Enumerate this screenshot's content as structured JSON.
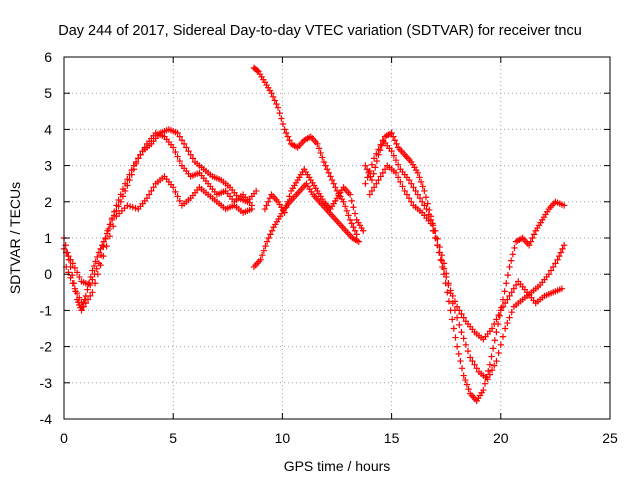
{
  "chart_data": {
    "type": "scatter",
    "title": "Day 244 of 2017, Sidereal Day-to-day VTEC variation (SDTVAR) for receiver tncu",
    "xlabel": "GPS time / hours",
    "ylabel": "SDTVAR / TECUs",
    "xlim": [
      0,
      25
    ],
    "ylim": [
      -4,
      6
    ],
    "xticks": [
      0,
      5,
      10,
      15,
      20,
      25
    ],
    "yticks": [
      -4,
      -3,
      -2,
      -1,
      0,
      1,
      2,
      3,
      4,
      5,
      6
    ],
    "grid": true,
    "marker": "+",
    "color": "#ff0000",
    "series": [
      {
        "x": [
          0.0,
          0.3,
          0.6,
          0.8,
          1.0,
          1.3,
          1.6,
          1.9,
          2.2,
          2.6,
          3.0,
          3.4,
          3.8,
          4.2,
          4.6,
          5.0,
          5.4,
          5.8,
          6.2,
          6.6,
          7.0,
          7.4,
          7.8,
          8.2,
          8.6
        ],
        "y": [
          1.0,
          0.2,
          -0.7,
          -1.0,
          -0.6,
          0.1,
          0.6,
          1.0,
          1.5,
          2.0,
          2.6,
          3.2,
          3.6,
          3.9,
          3.8,
          3.5,
          3.0,
          2.7,
          2.8,
          2.5,
          2.2,
          2.3,
          2.0,
          2.2,
          1.9
        ]
      },
      {
        "x": [
          0.0,
          0.4,
          0.8,
          1.2,
          1.6,
          2.0,
          2.4,
          2.8,
          3.2,
          3.6,
          4.0,
          4.4,
          4.8,
          5.2,
          5.6,
          6.0,
          6.4,
          6.8,
          7.2,
          7.6,
          8.0,
          8.4,
          8.8
        ],
        "y": [
          0.7,
          0.3,
          -0.2,
          -0.3,
          0.3,
          1.2,
          1.9,
          2.5,
          3.0,
          3.4,
          3.6,
          3.9,
          4.0,
          3.9,
          3.5,
          3.1,
          2.9,
          2.7,
          2.6,
          2.4,
          2.1,
          2.0,
          2.3
        ]
      },
      {
        "x": [
          0.1,
          0.5,
          0.9,
          1.3,
          1.8,
          2.4,
          2.9,
          3.4,
          3.8,
          4.2,
          4.6,
          5.0,
          5.4,
          5.8,
          6.2,
          6.6,
          7.0,
          7.4,
          7.8,
          8.2,
          8.6
        ],
        "y": [
          0.2,
          -0.4,
          -0.9,
          -0.5,
          0.5,
          1.6,
          1.9,
          1.8,
          2.1,
          2.5,
          2.7,
          2.4,
          1.9,
          2.1,
          2.4,
          2.2,
          2.0,
          1.8,
          1.9,
          1.7,
          1.8
        ]
      },
      {
        "x": [
          8.7,
          8.9,
          9.2,
          9.5,
          9.8,
          10.1,
          10.4,
          10.7,
          11.0,
          11.3,
          11.6,
          11.9,
          12.2,
          12.5,
          12.8,
          13.1,
          13.4
        ],
        "y": [
          5.7,
          5.6,
          5.3,
          5.0,
          4.6,
          4.0,
          3.6,
          3.5,
          3.7,
          3.8,
          3.6,
          3.1,
          2.7,
          2.3,
          2.0,
          1.5,
          1.1
        ]
      },
      {
        "x": [
          8.7,
          9.0,
          9.3,
          9.6,
          9.9,
          10.2,
          10.5,
          10.8,
          11.1,
          11.4,
          11.7,
          12.0,
          12.3,
          12.6,
          12.9,
          13.2,
          13.5
        ],
        "y": [
          0.2,
          0.4,
          0.9,
          1.3,
          1.6,
          1.9,
          2.1,
          2.3,
          2.5,
          2.2,
          2.0,
          1.8,
          1.6,
          1.4,
          1.2,
          1.0,
          0.9
        ]
      },
      {
        "x": [
          9.2,
          9.5,
          9.8,
          10.1,
          10.4,
          10.7,
          11.0,
          11.3,
          11.6,
          11.9,
          12.2,
          12.5,
          12.8,
          13.1,
          13.4,
          13.7
        ],
        "y": [
          1.8,
          2.2,
          2.0,
          1.7,
          2.3,
          2.6,
          2.9,
          2.6,
          2.3,
          2.0,
          1.8,
          2.1,
          2.4,
          2.2,
          1.5,
          1.2
        ]
      },
      {
        "x": [
          13.8,
          14.1,
          14.4,
          14.7,
          15.0,
          15.3,
          15.6,
          15.9,
          16.2,
          16.5,
          16.8,
          17.1,
          17.4,
          17.7,
          18.0,
          18.3,
          18.6,
          18.9,
          19.2,
          19.5,
          19.8,
          20.1,
          20.4,
          20.7,
          21.0,
          21.3,
          21.6,
          21.9,
          22.2,
          22.5,
          22.9
        ],
        "y": [
          3.0,
          2.6,
          3.3,
          3.8,
          3.9,
          3.5,
          3.3,
          3.1,
          2.8,
          2.3,
          1.6,
          0.8,
          0.0,
          -1.0,
          -2.0,
          -2.8,
          -3.3,
          -3.5,
          -3.2,
          -2.5,
          -1.6,
          -0.7,
          0.2,
          0.9,
          1.0,
          0.8,
          1.2,
          1.5,
          1.8,
          2.0,
          1.9
        ]
      },
      {
        "x": [
          13.8,
          14.2,
          14.6,
          15.0,
          15.4,
          15.8,
          16.2,
          16.6,
          17.0,
          17.4,
          17.8,
          18.2,
          18.6,
          19.0,
          19.4,
          19.8,
          20.2,
          20.6,
          21.0,
          21.4,
          21.8,
          22.2,
          22.6,
          22.9
        ],
        "y": [
          2.5,
          3.2,
          3.7,
          3.4,
          2.9,
          2.6,
          2.2,
          1.8,
          1.2,
          0.3,
          -0.8,
          -1.6,
          -2.3,
          -2.7,
          -2.9,
          -2.4,
          -1.5,
          -0.9,
          -0.7,
          -0.5,
          -0.3,
          0.0,
          0.4,
          0.8
        ]
      },
      {
        "x": [
          14.0,
          14.4,
          14.8,
          15.2,
          15.6,
          16.0,
          16.4,
          16.8,
          17.2,
          17.6,
          18.0,
          18.4,
          18.8,
          19.2,
          19.6,
          20.0,
          20.4,
          20.8,
          21.2,
          21.6,
          22.0,
          22.4,
          22.8
        ],
        "y": [
          2.2,
          2.6,
          3.0,
          2.8,
          2.3,
          1.9,
          1.7,
          1.4,
          0.6,
          -0.3,
          -0.9,
          -1.3,
          -1.6,
          -1.8,
          -1.5,
          -1.0,
          -0.6,
          -0.2,
          -0.5,
          -0.8,
          -0.6,
          -0.5,
          -0.4
        ]
      }
    ]
  }
}
